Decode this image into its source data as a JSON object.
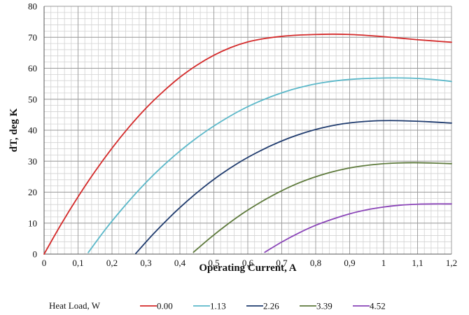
{
  "chart_data": {
    "type": "line",
    "title": "",
    "xlabel": "Operating Current, A",
    "ylabel": "dT, deg K",
    "xlim": [
      0,
      1.2
    ],
    "ylim": [
      0,
      80
    ],
    "x_ticks": [
      "0",
      "0,1",
      "0,2",
      "0,3",
      "0,4",
      "0,5",
      "0,6",
      "0,7",
      "0,8",
      "0,9",
      "1",
      "1,1",
      "1,2"
    ],
    "y_ticks": [
      "0",
      "10",
      "20",
      "30",
      "40",
      "50",
      "60",
      "70",
      "80"
    ],
    "grid": true,
    "legend_title": "Heat Load, W",
    "legend_position": "bottom",
    "series": [
      {
        "name": "0.00",
        "color": "#d42a2a",
        "x": [
          0,
          0.05,
          0.1,
          0.15,
          0.2,
          0.25,
          0.3,
          0.35,
          0.4,
          0.45,
          0.5,
          0.55,
          0.6,
          0.65,
          0.7,
          0.75,
          0.8,
          0.85,
          0.9,
          0.95,
          1.0,
          1.05,
          1.1,
          1.15,
          1.2
        ],
        "y": [
          0,
          9.6,
          18.5,
          26.7,
          34.2,
          41.0,
          47.1,
          52.4,
          57.1,
          61.0,
          64.2,
          66.7,
          68.5,
          69.6,
          70.3,
          70.7,
          70.9,
          71.0,
          70.9,
          70.6,
          70.2,
          69.7,
          69.2,
          68.8,
          68.4
        ]
      },
      {
        "name": "1.13",
        "color": "#5bb8c9",
        "x": [
          0.13,
          0.18,
          0.23,
          0.28,
          0.33,
          0.38,
          0.43,
          0.48,
          0.53,
          0.58,
          0.63,
          0.68,
          0.73,
          0.78,
          0.83,
          0.88,
          0.93,
          0.98,
          1.03,
          1.08,
          1.13,
          1.18,
          1.2
        ],
        "y": [
          0.5,
          7.9,
          14.6,
          20.8,
          26.4,
          31.4,
          35.9,
          39.9,
          43.4,
          46.5,
          49.1,
          51.3,
          53.1,
          54.5,
          55.5,
          56.2,
          56.6,
          56.8,
          56.9,
          56.8,
          56.5,
          56.0,
          55.7
        ]
      },
      {
        "name": "2.26",
        "color": "#1f3b6e",
        "x": [
          0.27,
          0.32,
          0.37,
          0.42,
          0.47,
          0.52,
          0.57,
          0.62,
          0.67,
          0.72,
          0.77,
          0.82,
          0.87,
          0.92,
          0.97,
          1.02,
          1.07,
          1.12,
          1.17,
          1.2
        ],
        "y": [
          0.2,
          6.3,
          11.9,
          17.0,
          21.6,
          25.7,
          29.3,
          32.4,
          35.1,
          37.4,
          39.3,
          40.8,
          41.9,
          42.6,
          43.0,
          43.1,
          43.0,
          42.8,
          42.5,
          42.3
        ]
      },
      {
        "name": "3.39",
        "color": "#5e7a3c",
        "x": [
          0.44,
          0.49,
          0.54,
          0.59,
          0.64,
          0.69,
          0.74,
          0.79,
          0.84,
          0.89,
          0.94,
          0.99,
          1.04,
          1.09,
          1.14,
          1.2
        ],
        "y": [
          0.6,
          5.3,
          9.6,
          13.5,
          16.9,
          19.9,
          22.5,
          24.6,
          26.3,
          27.6,
          28.5,
          29.1,
          29.4,
          29.5,
          29.4,
          29.2
        ]
      },
      {
        "name": "4.52",
        "color": "#8a44b8",
        "x": [
          0.65,
          0.7,
          0.75,
          0.8,
          0.85,
          0.9,
          0.95,
          1.0,
          1.05,
          1.1,
          1.15,
          1.2
        ],
        "y": [
          0.6,
          3.9,
          6.8,
          9.3,
          11.3,
          13.0,
          14.3,
          15.2,
          15.8,
          16.1,
          16.2,
          16.2
        ]
      }
    ]
  }
}
